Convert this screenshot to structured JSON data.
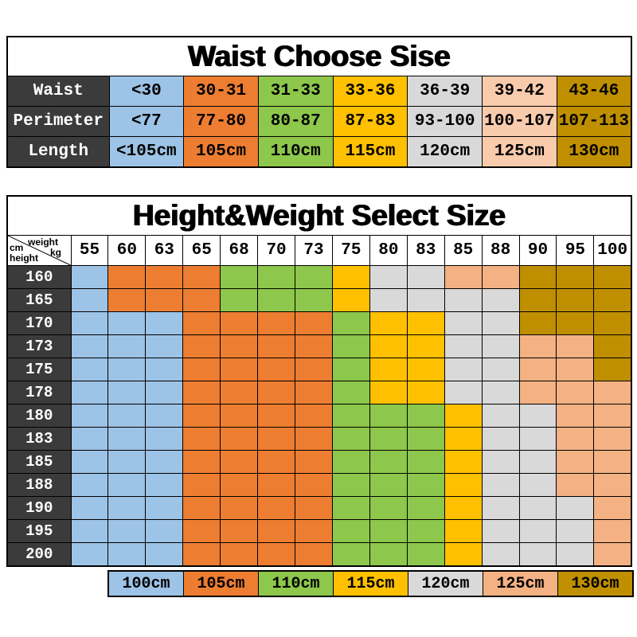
{
  "chart_data": [
    {
      "type": "table",
      "title": "Waist Choose Sise",
      "column_colors": [
        "#9DC3E6",
        "#ED7D31",
        "#8DC74B",
        "#FFC000",
        "#D9D9D9",
        "#F8CBAD",
        "#BF8F00"
      ],
      "rows": [
        {
          "header": "Waist",
          "values": [
            "<30",
            "30-31",
            "31-33",
            "33-36",
            "36-39",
            "39-42",
            "43-46"
          ]
        },
        {
          "header": "Perimeter",
          "values": [
            "<77",
            "77-80",
            "80-87",
            "87-83",
            "93-100",
            "100-107",
            "107-113"
          ]
        },
        {
          "header": "Length",
          "values": [
            "<105cm",
            "105cm",
            "110cm",
            "115cm",
            "120cm",
            "125cm",
            "130cm"
          ]
        }
      ]
    },
    {
      "type": "heatmap",
      "title": "Height&Weight Select Size",
      "xlabel": "weight kg",
      "ylabel": "height cm",
      "corner": {
        "col_label": "weight",
        "col_unit": "kg",
        "row_label": "height",
        "row_unit": "cm"
      },
      "x": [
        "55",
        "60",
        "63",
        "65",
        "68",
        "70",
        "73",
        "75",
        "80",
        "83",
        "85",
        "88",
        "90",
        "95",
        "100"
      ],
      "y": [
        "160",
        "165",
        "170",
        "173",
        "175",
        "178",
        "180",
        "183",
        "185",
        "188",
        "190",
        "195",
        "200"
      ],
      "values": [
        [
          "100cm",
          "105cm",
          "105cm",
          "105cm",
          "110cm",
          "110cm",
          "110cm",
          "115cm",
          "120cm",
          "120cm",
          "125cm",
          "125cm",
          "130cm",
          "130cm",
          "130cm"
        ],
        [
          "100cm",
          "105cm",
          "105cm",
          "105cm",
          "110cm",
          "110cm",
          "110cm",
          "115cm",
          "120cm",
          "120cm",
          "120cm",
          "120cm",
          "130cm",
          "130cm",
          "130cm"
        ],
        [
          "100cm",
          "100cm",
          "100cm",
          "105cm",
          "105cm",
          "105cm",
          "105cm",
          "110cm",
          "115cm",
          "115cm",
          "120cm",
          "120cm",
          "130cm",
          "130cm",
          "130cm"
        ],
        [
          "100cm",
          "100cm",
          "100cm",
          "105cm",
          "105cm",
          "105cm",
          "105cm",
          "110cm",
          "115cm",
          "115cm",
          "120cm",
          "120cm",
          "125cm",
          "125cm",
          "130cm"
        ],
        [
          "100cm",
          "100cm",
          "100cm",
          "105cm",
          "105cm",
          "105cm",
          "105cm",
          "110cm",
          "115cm",
          "115cm",
          "120cm",
          "120cm",
          "125cm",
          "125cm",
          "130cm"
        ],
        [
          "100cm",
          "100cm",
          "100cm",
          "105cm",
          "105cm",
          "105cm",
          "105cm",
          "110cm",
          "115cm",
          "115cm",
          "120cm",
          "120cm",
          "125cm",
          "125cm",
          "125cm"
        ],
        [
          "100cm",
          "100cm",
          "100cm",
          "105cm",
          "105cm",
          "105cm",
          "105cm",
          "110cm",
          "110cm",
          "110cm",
          "115cm",
          "120cm",
          "120cm",
          "125cm",
          "125cm"
        ],
        [
          "100cm",
          "100cm",
          "100cm",
          "105cm",
          "105cm",
          "105cm",
          "105cm",
          "110cm",
          "110cm",
          "110cm",
          "115cm",
          "120cm",
          "120cm",
          "125cm",
          "125cm"
        ],
        [
          "100cm",
          "100cm",
          "100cm",
          "105cm",
          "105cm",
          "105cm",
          "105cm",
          "110cm",
          "110cm",
          "110cm",
          "115cm",
          "120cm",
          "120cm",
          "125cm",
          "125cm"
        ],
        [
          "100cm",
          "100cm",
          "100cm",
          "105cm",
          "105cm",
          "105cm",
          "105cm",
          "110cm",
          "110cm",
          "110cm",
          "115cm",
          "120cm",
          "120cm",
          "125cm",
          "125cm"
        ],
        [
          "100cm",
          "100cm",
          "100cm",
          "105cm",
          "105cm",
          "105cm",
          "105cm",
          "110cm",
          "110cm",
          "110cm",
          "115cm",
          "120cm",
          "120cm",
          "120cm",
          "125cm"
        ],
        [
          "100cm",
          "100cm",
          "100cm",
          "105cm",
          "105cm",
          "105cm",
          "105cm",
          "110cm",
          "110cm",
          "110cm",
          "115cm",
          "120cm",
          "120cm",
          "120cm",
          "125cm"
        ],
        [
          "100cm",
          "100cm",
          "100cm",
          "105cm",
          "105cm",
          "105cm",
          "105cm",
          "110cm",
          "110cm",
          "110cm",
          "115cm",
          "120cm",
          "120cm",
          "120cm",
          "125cm"
        ]
      ],
      "legend": [
        {
          "label": "100cm",
          "color": "#9DC3E6"
        },
        {
          "label": "105cm",
          "color": "#ED7D31"
        },
        {
          "label": "110cm",
          "color": "#8DC74B"
        },
        {
          "label": "115cm",
          "color": "#FFC000"
        },
        {
          "label": "120cm",
          "color": "#D9D9D9"
        },
        {
          "label": "125cm",
          "color": "#F4B183"
        },
        {
          "label": "130cm",
          "color": "#BF8F00"
        }
      ],
      "legend_position": "bottom"
    }
  ],
  "colors": {
    "header_dark": "#3B3B3B",
    "border": "#000000",
    "background": "#FFFFFF"
  }
}
